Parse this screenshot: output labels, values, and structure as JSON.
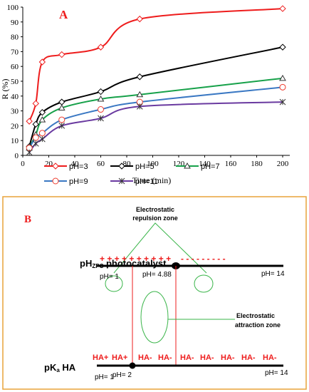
{
  "chart_data": {
    "type": "line",
    "panel_label": "A",
    "xlabel": "Time (min)",
    "ylabel": "R (%)",
    "xlim": [
      0,
      200
    ],
    "ylim": [
      0,
      100
    ],
    "xticks": [
      0,
      20,
      40,
      60,
      80,
      100,
      120,
      140,
      160,
      180,
      200
    ],
    "yticks": [
      0,
      10,
      20,
      30,
      40,
      50,
      60,
      70,
      80,
      90,
      100
    ],
    "grid": false,
    "legend_position": "bottom",
    "x": [
      5,
      10,
      15,
      30,
      60,
      90,
      200
    ],
    "series": [
      {
        "name": "pH=3",
        "color": "#ee1c1c",
        "marker": "diamond",
        "values": [
          23,
          35,
          63,
          68,
          73,
          92,
          99
        ]
      },
      {
        "name": "pH=5",
        "color": "#000000",
        "marker": "diamond",
        "values": [
          6,
          21,
          29,
          36,
          43,
          53,
          73
        ]
      },
      {
        "name": "pH=7",
        "color": "#17a14a",
        "marker": "triangle",
        "values": [
          5,
          14,
          24,
          32,
          38,
          41,
          52
        ]
      },
      {
        "name": "pH=9",
        "color": "#3a78c3",
        "marker": "circle",
        "values": [
          5,
          12,
          15,
          24,
          31,
          36,
          46
        ]
      },
      {
        "name": "pH=11",
        "color": "#6a3aa0",
        "marker": "star",
        "values": [
          2,
          8,
          11,
          20,
          25,
          33,
          36
        ]
      }
    ]
  },
  "diagram_b": {
    "panel_label": "B",
    "repulsion_label_line1": "Electrostatic",
    "repulsion_label_line2": "repulsion zone",
    "attraction_label_line1": "Electrostatic",
    "attraction_label_line2": "attraction zone",
    "photocatalyst_label_main": "pH",
    "photocatalyst_label_sub": "ZPC",
    "photocatalyst_label_rest": " photocatalyst",
    "ha_label_main": "pK",
    "ha_label_sub": "a",
    "ha_label_rest": " HA",
    "plus_signs": "+ + + + + + + + + +",
    "minus_signs": "- - - - - - - - -",
    "ph_left_top": "pH= 1",
    "ph_zpc": "pH= 4.88",
    "ph_right_top": "pH= 14",
    "ph_left_bottom": "pH= 1",
    "ph_pka": "pH= 2",
    "ph_right_bottom": "pH= 14",
    "species": [
      "HA+",
      "HA+",
      "HA-",
      "HA-",
      "HA-",
      "HA-",
      "HA-",
      "HA-",
      "HA-"
    ],
    "label_color": "#ee1c1c",
    "box_border_color": "#e8a33a"
  }
}
